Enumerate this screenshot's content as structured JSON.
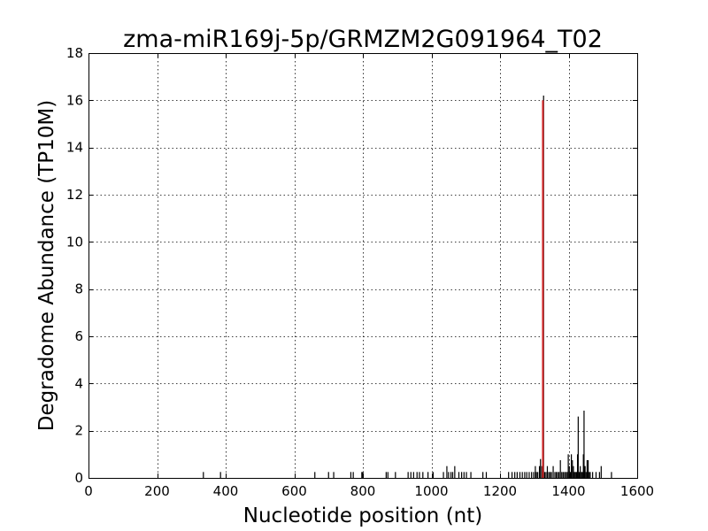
{
  "chart_data": {
    "type": "bar",
    "title": "zma-miR169j-5p/GRMZM2G091964_T02",
    "xlabel": "Nucleotide position (nt)",
    "ylabel": "Degradome Abundance (TP10M)",
    "xlim": [
      0,
      1600
    ],
    "ylim": [
      0,
      18
    ],
    "xticks": [
      0,
      200,
      400,
      600,
      800,
      1000,
      1200,
      1400,
      1600
    ],
    "yticks": [
      0,
      2,
      4,
      6,
      8,
      10,
      12,
      14,
      16,
      18
    ],
    "grid": true,
    "bar_color": "#000000",
    "highlight_color": "#d62728",
    "series": [
      {
        "values": [
          [
            335,
            0.25
          ],
          [
            385,
            0.25
          ],
          [
            660,
            0.25
          ],
          [
            700,
            0.25
          ],
          [
            715,
            0.25
          ],
          [
            765,
            0.25
          ],
          [
            772,
            0.25
          ],
          [
            797,
            0.25
          ],
          [
            800,
            0.25
          ],
          [
            868,
            0.25
          ],
          [
            873,
            0.25
          ],
          [
            895,
            0.25
          ],
          [
            932,
            0.25
          ],
          [
            940,
            0.25
          ],
          [
            948,
            0.25
          ],
          [
            958,
            0.25
          ],
          [
            965,
            0.25
          ],
          [
            975,
            0.25
          ],
          [
            990,
            0.25
          ],
          [
            1005,
            0.25
          ],
          [
            1035,
            0.25
          ],
          [
            1045,
            0.5
          ],
          [
            1050,
            0.25
          ],
          [
            1057,
            0.25
          ],
          [
            1062,
            0.25
          ],
          [
            1068,
            0.5
          ],
          [
            1080,
            0.25
          ],
          [
            1088,
            0.25
          ],
          [
            1095,
            0.25
          ],
          [
            1102,
            0.25
          ],
          [
            1115,
            0.25
          ],
          [
            1150,
            0.25
          ],
          [
            1160,
            0.25
          ],
          [
            1225,
            0.25
          ],
          [
            1235,
            0.25
          ],
          [
            1243,
            0.25
          ],
          [
            1250,
            0.25
          ],
          [
            1258,
            0.25
          ],
          [
            1265,
            0.25
          ],
          [
            1272,
            0.25
          ],
          [
            1278,
            0.25
          ],
          [
            1285,
            0.25
          ],
          [
            1292,
            0.25
          ],
          [
            1298,
            0.25
          ],
          [
            1303,
            0.5
          ],
          [
            1306,
            0.25
          ],
          [
            1310,
            0.25
          ],
          [
            1315,
            0.5
          ],
          [
            1318,
            0.8
          ],
          [
            1322,
            0.5
          ],
          [
            1327,
            16.2
          ],
          [
            1330,
            0.25
          ],
          [
            1334,
            0.25
          ],
          [
            1338,
            0.5
          ],
          [
            1342,
            0.25
          ],
          [
            1346,
            0.25
          ],
          [
            1350,
            0.25
          ],
          [
            1355,
            0.5
          ],
          [
            1360,
            0.25
          ],
          [
            1364,
            0.25
          ],
          [
            1368,
            0.25
          ],
          [
            1372,
            0.25
          ],
          [
            1376,
            0.75
          ],
          [
            1380,
            0.25
          ],
          [
            1384,
            0.25
          ],
          [
            1388,
            0.25
          ],
          [
            1392,
            0.25
          ],
          [
            1396,
            0.25
          ],
          [
            1399,
            1.0
          ],
          [
            1402,
            0.5
          ],
          [
            1405,
            0.25
          ],
          [
            1408,
            1.0
          ],
          [
            1411,
            0.75
          ],
          [
            1414,
            0.5
          ],
          [
            1417,
            0.25
          ],
          [
            1420,
            0.25
          ],
          [
            1423,
            0.25
          ],
          [
            1426,
            1.0
          ],
          [
            1428,
            2.6
          ],
          [
            1431,
            0.25
          ],
          [
            1434,
            0.5
          ],
          [
            1437,
            0.25
          ],
          [
            1440,
            0.25
          ],
          [
            1443,
            1.0
          ],
          [
            1445,
            2.85
          ],
          [
            1448,
            0.5
          ],
          [
            1451,
            0.25
          ],
          [
            1454,
            0.75
          ],
          [
            1457,
            0.75
          ],
          [
            1460,
            0.25
          ],
          [
            1463,
            0.25
          ],
          [
            1470,
            0.25
          ],
          [
            1480,
            0.25
          ],
          [
            1490,
            0.25
          ],
          [
            1495,
            0.5
          ],
          [
            1525,
            0.25
          ]
        ]
      }
    ],
    "highlight": {
      "x": 1325,
      "y": 16.0
    }
  }
}
